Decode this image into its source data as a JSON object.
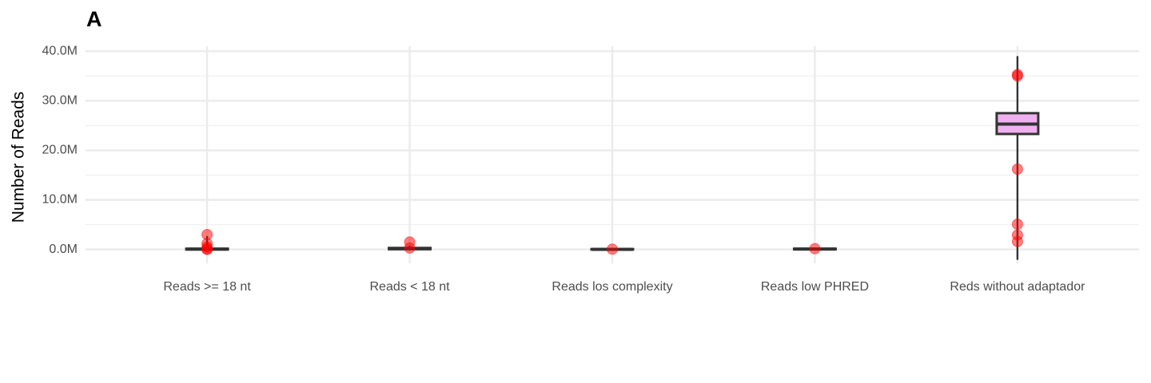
{
  "chart_data": {
    "type": "boxplot",
    "title": "A",
    "ylabel": "Number of Reads",
    "categories": [
      "Reads >= 18 nt",
      "Reads < 18 nt",
      "Reads los complexity",
      "Reads low PHRED",
      "Reds without adaptador"
    ],
    "boxes": [
      {
        "low": 0,
        "q1": 0,
        "median": 50000,
        "q3": 150000,
        "high": 2700000
      },
      {
        "low": 0,
        "q1": 50000,
        "median": 150000,
        "q3": 300000,
        "high": 800000
      },
      {
        "low": 0,
        "q1": 0,
        "median": 20000,
        "q3": 60000,
        "high": 150000
      },
      {
        "low": 0,
        "q1": 30000,
        "median": 80000,
        "q3": 150000,
        "high": 300000
      },
      {
        "low": -2100000,
        "q1": 23300000,
        "median": 25300000,
        "q3": 27500000,
        "high": 39000000
      }
    ],
    "points": [
      [
        3000000,
        1200000,
        500000,
        100000,
        0
      ],
      [
        1500000,
        300000
      ],
      [
        50000
      ],
      [
        150000
      ],
      [
        35300000,
        35000000,
        16200000,
        5100000,
        2900000,
        1600000
      ]
    ],
    "box_color": "#f0b0f0",
    "point_color": "#ff0000",
    "ylim": [
      -2800000,
      41000000
    ],
    "yticks": [
      {
        "value": 0,
        "label": "0.0M"
      },
      {
        "value": 10000000,
        "label": "10.0M"
      },
      {
        "value": 20000000,
        "label": "20.0M"
      },
      {
        "value": 30000000,
        "label": "30.0M"
      },
      {
        "value": 40000000,
        "label": "40.0M"
      }
    ],
    "yminor": [
      5000000,
      15000000,
      25000000,
      35000000
    ],
    "grid": true
  }
}
